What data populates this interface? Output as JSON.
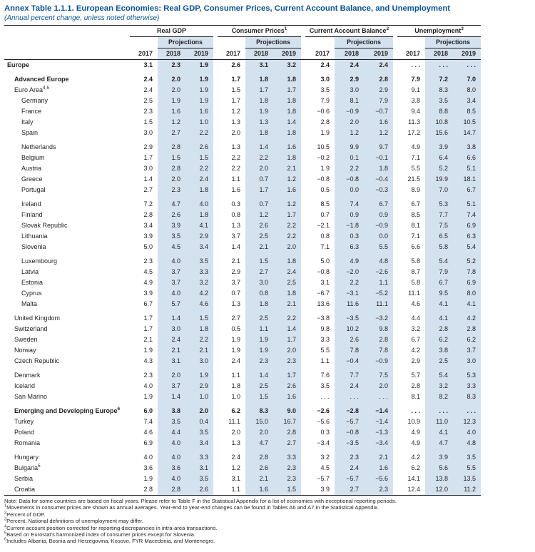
{
  "title": "Annex Table 1.1.1. European Economies: Real GDP, Consumer Prices, Current Account Balance, and Unemployment",
  "subtitle": "(Annual percent change, unless noted otherwise)",
  "colors": {
    "title_blue": "#0b5394",
    "projection_shading": "#d4e2f0",
    "rule": "#231f20"
  },
  "table": {
    "projections_label": "Projections",
    "years": [
      "2017",
      "2018",
      "2019"
    ],
    "groups": [
      {
        "label": "Real GDP",
        "sup": ""
      },
      {
        "label": "Consumer Prices",
        "sup": "1"
      },
      {
        "label": "Current Account Balance",
        "sup": "2"
      },
      {
        "label": "Unemployment",
        "sup": "3"
      }
    ],
    "rows": [
      {
        "label": "Europe",
        "sup": "",
        "indent": 0,
        "bold": true,
        "gap": false,
        "values": [
          "3.1",
          "2.3",
          "1.9",
          "2.6",
          "3.1",
          "3.2",
          "2.4",
          "2.4",
          "2.4",
          ". . .",
          ". . .",
          ". . ."
        ]
      },
      {
        "label": "Advanced Europe",
        "sup": "",
        "indent": 1,
        "bold": true,
        "gap": true,
        "values": [
          "2.4",
          "2.0",
          "1.9",
          "1.7",
          "1.8",
          "1.8",
          "3.0",
          "2.9",
          "2.8",
          "7.9",
          "7.2",
          "7.0"
        ]
      },
      {
        "label": "Euro Area",
        "sup": "4,5",
        "indent": 1,
        "bold": false,
        "gap": false,
        "values": [
          "2.4",
          "2.0",
          "1.9",
          "1.5",
          "1.7",
          "1.7",
          "3.5",
          "3.0",
          "2.9",
          "9.1",
          "8.3",
          "8.0"
        ]
      },
      {
        "label": "Germany",
        "sup": "",
        "indent": 2,
        "bold": false,
        "gap": false,
        "values": [
          "2.5",
          "1.9",
          "1.9",
          "1.7",
          "1.8",
          "1.8",
          "7.9",
          "8.1",
          "7.9",
          "3.8",
          "3.5",
          "3.4"
        ]
      },
      {
        "label": "France",
        "sup": "",
        "indent": 2,
        "bold": false,
        "gap": false,
        "values": [
          "2.3",
          "1.6",
          "1.6",
          "1.2",
          "1.9",
          "1.8",
          "−0.6",
          "−0.9",
          "−0.7",
          "9.4",
          "8.8",
          "8.5"
        ]
      },
      {
        "label": "Italy",
        "sup": "",
        "indent": 2,
        "bold": false,
        "gap": false,
        "values": [
          "1.5",
          "1.2",
          "1.0",
          "1.3",
          "1.3",
          "1.4",
          "2.8",
          "2.0",
          "1.6",
          "11.3",
          "10.8",
          "10.5"
        ]
      },
      {
        "label": "Spain",
        "sup": "",
        "indent": 2,
        "bold": false,
        "gap": false,
        "values": [
          "3.0",
          "2.7",
          "2.2",
          "2.0",
          "1.8",
          "1.8",
          "1.9",
          "1.2",
          "1.2",
          "17.2",
          "15.6",
          "14.7"
        ]
      },
      {
        "label": "Netherlands",
        "sup": "",
        "indent": 2,
        "bold": false,
        "gap": true,
        "values": [
          "2.9",
          "2.8",
          "2.6",
          "1.3",
          "1.4",
          "1.6",
          "10.5",
          "9.9",
          "9.7",
          "4.9",
          "3.9",
          "3.8"
        ]
      },
      {
        "label": "Belgium",
        "sup": "",
        "indent": 2,
        "bold": false,
        "gap": false,
        "values": [
          "1.7",
          "1.5",
          "1.5",
          "2.2",
          "2.2",
          "1.8",
          "−0.2",
          "0.1",
          "−0.1",
          "7.1",
          "6.4",
          "6.6"
        ]
      },
      {
        "label": "Austria",
        "sup": "",
        "indent": 2,
        "bold": false,
        "gap": false,
        "values": [
          "3.0",
          "2.8",
          "2.2",
          "2.2",
          "2.0",
          "2.1",
          "1.9",
          "2.2",
          "1.8",
          "5.5",
          "5.2",
          "5.1"
        ]
      },
      {
        "label": "Greece",
        "sup": "",
        "indent": 2,
        "bold": false,
        "gap": false,
        "values": [
          "1.4",
          "2.0",
          "2.4",
          "1.1",
          "0.7",
          "1.2",
          "−0.8",
          "−0.8",
          "−0.4",
          "21.5",
          "19.9",
          "18.1"
        ]
      },
      {
        "label": "Portugal",
        "sup": "",
        "indent": 2,
        "bold": false,
        "gap": false,
        "values": [
          "2.7",
          "2.3",
          "1.8",
          "1.6",
          "1.7",
          "1.6",
          "0.5",
          "0.0",
          "−0.3",
          "8.9",
          "7.0",
          "6.7"
        ]
      },
      {
        "label": "Ireland",
        "sup": "",
        "indent": 2,
        "bold": false,
        "gap": true,
        "values": [
          "7.2",
          "4.7",
          "4.0",
          "0.3",
          "0.7",
          "1.2",
          "8.5",
          "7.4",
          "6.7",
          "6.7",
          "5.3",
          "5.1"
        ]
      },
      {
        "label": "Finland",
        "sup": "",
        "indent": 2,
        "bold": false,
        "gap": false,
        "values": [
          "2.8",
          "2.6",
          "1.8",
          "0.8",
          "1.2",
          "1.7",
          "0.7",
          "0.9",
          "0.9",
          "8.5",
          "7.7",
          "7.4"
        ]
      },
      {
        "label": "Slovak Republic",
        "sup": "",
        "indent": 2,
        "bold": false,
        "gap": false,
        "values": [
          "3.4",
          "3.9",
          "4.1",
          "1.3",
          "2.6",
          "2.2",
          "−2.1",
          "−1.8",
          "−0.9",
          "8.1",
          "7.5",
          "6.9"
        ]
      },
      {
        "label": "Lithuania",
        "sup": "",
        "indent": 2,
        "bold": false,
        "gap": false,
        "values": [
          "3.9",
          "3.5",
          "2.9",
          "3.7",
          "2.5",
          "2.2",
          "0.8",
          "0.3",
          "0.0",
          "7.1",
          "6.5",
          "6.3"
        ]
      },
      {
        "label": "Slovenia",
        "sup": "",
        "indent": 2,
        "bold": false,
        "gap": false,
        "values": [
          "5.0",
          "4.5",
          "3.4",
          "1.4",
          "2.1",
          "2.0",
          "7.1",
          "6.3",
          "5.5",
          "6.6",
          "5.8",
          "5.4"
        ]
      },
      {
        "label": "Luxembourg",
        "sup": "",
        "indent": 2,
        "bold": false,
        "gap": true,
        "values": [
          "2.3",
          "4.0",
          "3.5",
          "2.1",
          "1.5",
          "1.8",
          "5.0",
          "4.9",
          "4.8",
          "5.8",
          "5.4",
          "5.2"
        ]
      },
      {
        "label": "Latvia",
        "sup": "",
        "indent": 2,
        "bold": false,
        "gap": false,
        "values": [
          "4.5",
          "3.7",
          "3.3",
          "2.9",
          "2.7",
          "2.4",
          "−0.8",
          "−2.0",
          "−2.6",
          "8.7",
          "7.9",
          "7.8"
        ]
      },
      {
        "label": "Estonia",
        "sup": "",
        "indent": 2,
        "bold": false,
        "gap": false,
        "values": [
          "4.9",
          "3.7",
          "3.2",
          "3.7",
          "3.0",
          "2.5",
          "3.1",
          "2.2",
          "1.1",
          "5.8",
          "6.7",
          "6.9"
        ]
      },
      {
        "label": "Cyprus",
        "sup": "",
        "indent": 2,
        "bold": false,
        "gap": false,
        "values": [
          "3.9",
          "4.0",
          "4.2",
          "0.7",
          "0.8",
          "1.8",
          "−6.7",
          "−3.1",
          "−5.2",
          "11.1",
          "9.5",
          "8.0"
        ]
      },
      {
        "label": "Malta",
        "sup": "",
        "indent": 2,
        "bold": false,
        "gap": false,
        "values": [
          "6.7",
          "5.7",
          "4.6",
          "1.3",
          "1.8",
          "2.1",
          "13.6",
          "11.6",
          "11.1",
          "4.6",
          "4.1",
          "4.1"
        ]
      },
      {
        "label": "United Kingdom",
        "sup": "",
        "indent": 1,
        "bold": false,
        "gap": true,
        "values": [
          "1.7",
          "1.4",
          "1.5",
          "2.7",
          "2.5",
          "2.2",
          "−3.8",
          "−3.5",
          "−3.2",
          "4.4",
          "4.1",
          "4.2"
        ]
      },
      {
        "label": "Switzerland",
        "sup": "",
        "indent": 1,
        "bold": false,
        "gap": false,
        "values": [
          "1.7",
          "3.0",
          "1.8",
          "0.5",
          "1.1",
          "1.4",
          "9.8",
          "10.2",
          "9.8",
          "3.2",
          "2.8",
          "2.8"
        ]
      },
      {
        "label": "Sweden",
        "sup": "",
        "indent": 1,
        "bold": false,
        "gap": false,
        "values": [
          "2.1",
          "2.4",
          "2.2",
          "1.9",
          "1.9",
          "1.7",
          "3.3",
          "2.6",
          "2.8",
          "6.7",
          "6.2",
          "6.2"
        ]
      },
      {
        "label": "Norway",
        "sup": "",
        "indent": 1,
        "bold": false,
        "gap": false,
        "values": [
          "1.9",
          "2.1",
          "2.1",
          "1.9",
          "1.9",
          "2.0",
          "5.5",
          "7.8",
          "7.8",
          "4.2",
          "3.8",
          "3.7"
        ]
      },
      {
        "label": "Czech Republic",
        "sup": "",
        "indent": 1,
        "bold": false,
        "gap": false,
        "values": [
          "4.3",
          "3.1",
          "3.0",
          "2.4",
          "2.3",
          "2.3",
          "1.1",
          "−0.4",
          "−0.9",
          "2.9",
          "2.5",
          "3.0"
        ]
      },
      {
        "label": "Denmark",
        "sup": "",
        "indent": 1,
        "bold": false,
        "gap": true,
        "values": [
          "2.3",
          "2.0",
          "1.9",
          "1.1",
          "1.4",
          "1.7",
          "7.6",
          "7.7",
          "7.5",
          "5.7",
          "5.4",
          "5.3"
        ]
      },
      {
        "label": "Iceland",
        "sup": "",
        "indent": 1,
        "bold": false,
        "gap": false,
        "values": [
          "4.0",
          "3.7",
          "2.9",
          "1.8",
          "2.5",
          "2.6",
          "3.5",
          "2.4",
          "2.0",
          "2.8",
          "3.2",
          "3.3"
        ]
      },
      {
        "label": "San Marino",
        "sup": "",
        "indent": 1,
        "bold": false,
        "gap": false,
        "values": [
          "1.9",
          "1.4",
          "1.0",
          "1.0",
          "1.5",
          "1.6",
          ". . .",
          ". . .",
          ". . .",
          "8.1",
          "8.2",
          "8.3"
        ]
      },
      {
        "label": "Emerging and Developing Europe",
        "sup": "6",
        "indent": 1,
        "bold": true,
        "gap": true,
        "values": [
          "6.0",
          "3.8",
          "2.0",
          "6.2",
          "8.3",
          "9.0",
          "−2.6",
          "−2.8",
          "−1.4",
          ". . .",
          ". . .",
          ". . ."
        ]
      },
      {
        "label": "Turkey",
        "sup": "",
        "indent": 1,
        "bold": false,
        "gap": false,
        "values": [
          "7.4",
          "3.5",
          "0.4",
          "11.1",
          "15.0",
          "16.7",
          "−5.6",
          "−5.7",
          "−1.4",
          "10.9",
          "11.0",
          "12.3"
        ]
      },
      {
        "label": "Poland",
        "sup": "",
        "indent": 1,
        "bold": false,
        "gap": false,
        "values": [
          "4.6",
          "4.4",
          "3.5",
          "2.0",
          "2.0",
          "2.8",
          "0.3",
          "−0.8",
          "−1.3",
          "4.9",
          "4.1",
          "4.0"
        ]
      },
      {
        "label": "Romania",
        "sup": "",
        "indent": 1,
        "bold": false,
        "gap": false,
        "values": [
          "6.9",
          "4.0",
          "3.4",
          "1.3",
          "4.7",
          "2.7",
          "−3.4",
          "−3.5",
          "−3.4",
          "4.9",
          "4.7",
          "4.8"
        ]
      },
      {
        "label": "Hungary",
        "sup": "",
        "indent": 1,
        "bold": false,
        "gap": true,
        "values": [
          "4.0",
          "4.0",
          "3.3",
          "2.4",
          "2.8",
          "3.3",
          "3.2",
          "2.3",
          "2.1",
          "4.2",
          "3.9",
          "3.5"
        ]
      },
      {
        "label": "Bulgaria",
        "sup": "5",
        "indent": 1,
        "bold": false,
        "gap": false,
        "values": [
          "3.6",
          "3.6",
          "3.1",
          "1.2",
          "2.6",
          "2.3",
          "4.5",
          "2.4",
          "1.6",
          "6.2",
          "5.6",
          "5.5"
        ]
      },
      {
        "label": "Serbia",
        "sup": "",
        "indent": 1,
        "bold": false,
        "gap": false,
        "values": [
          "1.9",
          "4.0",
          "3.5",
          "3.1",
          "2.1",
          "2.3",
          "−5.7",
          "−5.7",
          "−5.6",
          "14.1",
          "13.8",
          "13.5"
        ]
      },
      {
        "label": "Croatia",
        "sup": "",
        "indent": 1,
        "bold": false,
        "gap": false,
        "values": [
          "2.8",
          "2.8",
          "2.6",
          "1.1",
          "1.6",
          "1.5",
          "3.9",
          "2.7",
          "2.3",
          "12.4",
          "12.0",
          "11.2"
        ]
      }
    ]
  },
  "notes": [
    {
      "sup": "",
      "text": "Note: Data for some countries are based on fiscal years. Please refer to Table F in the Statistical Appendix for a list of economies with exceptional reporting periods."
    },
    {
      "sup": "1",
      "text": "Movements in consumer prices are shown as annual averages. Year-end to year-end changes can be found in Tables A6 and A7 in the Statistical Appendix."
    },
    {
      "sup": "2",
      "text": "Percent of GDP."
    },
    {
      "sup": "3",
      "text": "Percent. National definitions of unemployment may differ."
    },
    {
      "sup": "4",
      "text": "Current account position corrected for reporting discrepancies in intra-area transactions."
    },
    {
      "sup": "5",
      "text": "Based on Eurostat’s harmonized index of consumer prices except for Slovenia."
    },
    {
      "sup": "6",
      "text": "Includes Albania, Bosnia and Herzegovina, Kosovo, FYR Macedonia, and Montenegro."
    }
  ]
}
